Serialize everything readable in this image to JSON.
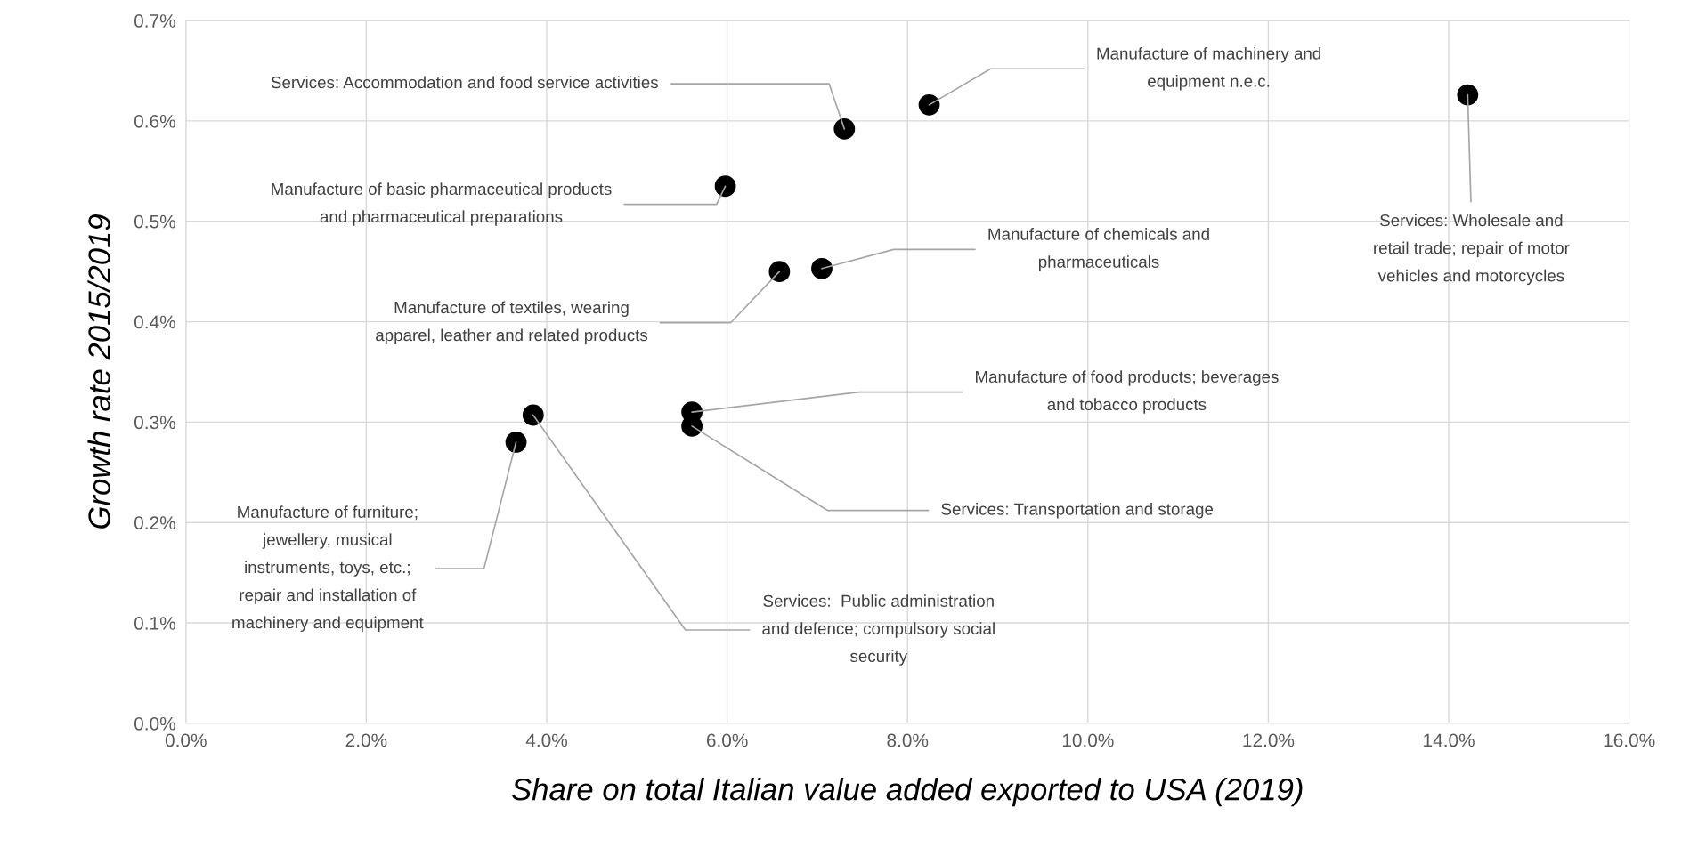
{
  "chart_data": {
    "type": "scatter",
    "xlabel": "Share on total Italian value added exported to USA (2019)",
    "ylabel": "Growth rate 2015/2019",
    "x": [
      8.24,
      14.21,
      7.3,
      5.98,
      6.58,
      7.05,
      5.61,
      5.61,
      3.85,
      3.66
    ],
    "series": [
      {
        "color": "#000000",
        "values": [
          0.616,
          0.626,
          0.592,
          0.535,
          0.45,
          0.453,
          0.31,
          0.296,
          0.307,
          0.28
        ]
      }
    ],
    "marker": "circle",
    "grid": true,
    "xlim": [
      0,
      16
    ],
    "ylim": [
      0,
      0.7
    ],
    "xticks": [
      {
        "value": 0,
        "label": "0.0%"
      },
      {
        "value": 2,
        "label": "2.0%"
      },
      {
        "value": 4,
        "label": "4.0%"
      },
      {
        "value": 6,
        "label": "6.0%"
      },
      {
        "value": 8,
        "label": "8.0%"
      },
      {
        "value": 10,
        "label": "10.0%"
      },
      {
        "value": 12,
        "label": "12.0%"
      },
      {
        "value": 14,
        "label": "14.0%"
      },
      {
        "value": 16,
        "label": "16.0%"
      }
    ],
    "yticks": [
      {
        "value": 0,
        "label": "0.0%"
      },
      {
        "value": 0.1,
        "label": "0.1%"
      },
      {
        "value": 0.2,
        "label": "0.2%"
      },
      {
        "value": 0.3,
        "label": "0.3%"
      },
      {
        "value": 0.4,
        "label": "0.4%"
      },
      {
        "value": 0.5,
        "label": "0.5%"
      },
      {
        "value": 0.6,
        "label": "0.6%"
      },
      {
        "value": 0.7,
        "label": "0.7%"
      }
    ],
    "annotations": [
      {
        "text": "Manufacture of machinery and\nequipment n.e.c.",
        "x": 8.24,
        "y": 0.616
      },
      {
        "text": "Services: Wholesale and\nretail trade; repair of motor\nvehicles and motorcycles",
        "x": 14.21,
        "y": 0.626
      },
      {
        "text": "Services: Accommodation and food service activities",
        "x": 7.3,
        "y": 0.592
      },
      {
        "text": "Manufacture of basic pharmaceutical products\nand pharmaceutical preparations",
        "x": 5.98,
        "y": 0.535
      },
      {
        "text": "Manufacture of textiles, wearing\napparel, leather and related products",
        "x": 6.58,
        "y": 0.45
      },
      {
        "text": "Manufacture of chemicals and\npharmaceuticals",
        "x": 7.05,
        "y": 0.453
      },
      {
        "text": "Manufacture of food products; beverages\nand tobacco products",
        "x": 5.61,
        "y": 0.31
      },
      {
        "text": "Services: Transportation and storage",
        "x": 5.61,
        "y": 0.296
      },
      {
        "text": "Services:  Public administration\nand defence; compulsory social\nsecurity",
        "x": 3.85,
        "y": 0.307
      },
      {
        "text": "Manufacture of furniture;\njewellery, musical\ninstruments, toys, etc.;\nrepair and installation of\nmachinery and equipment",
        "x": 3.66,
        "y": 0.28
      }
    ]
  }
}
